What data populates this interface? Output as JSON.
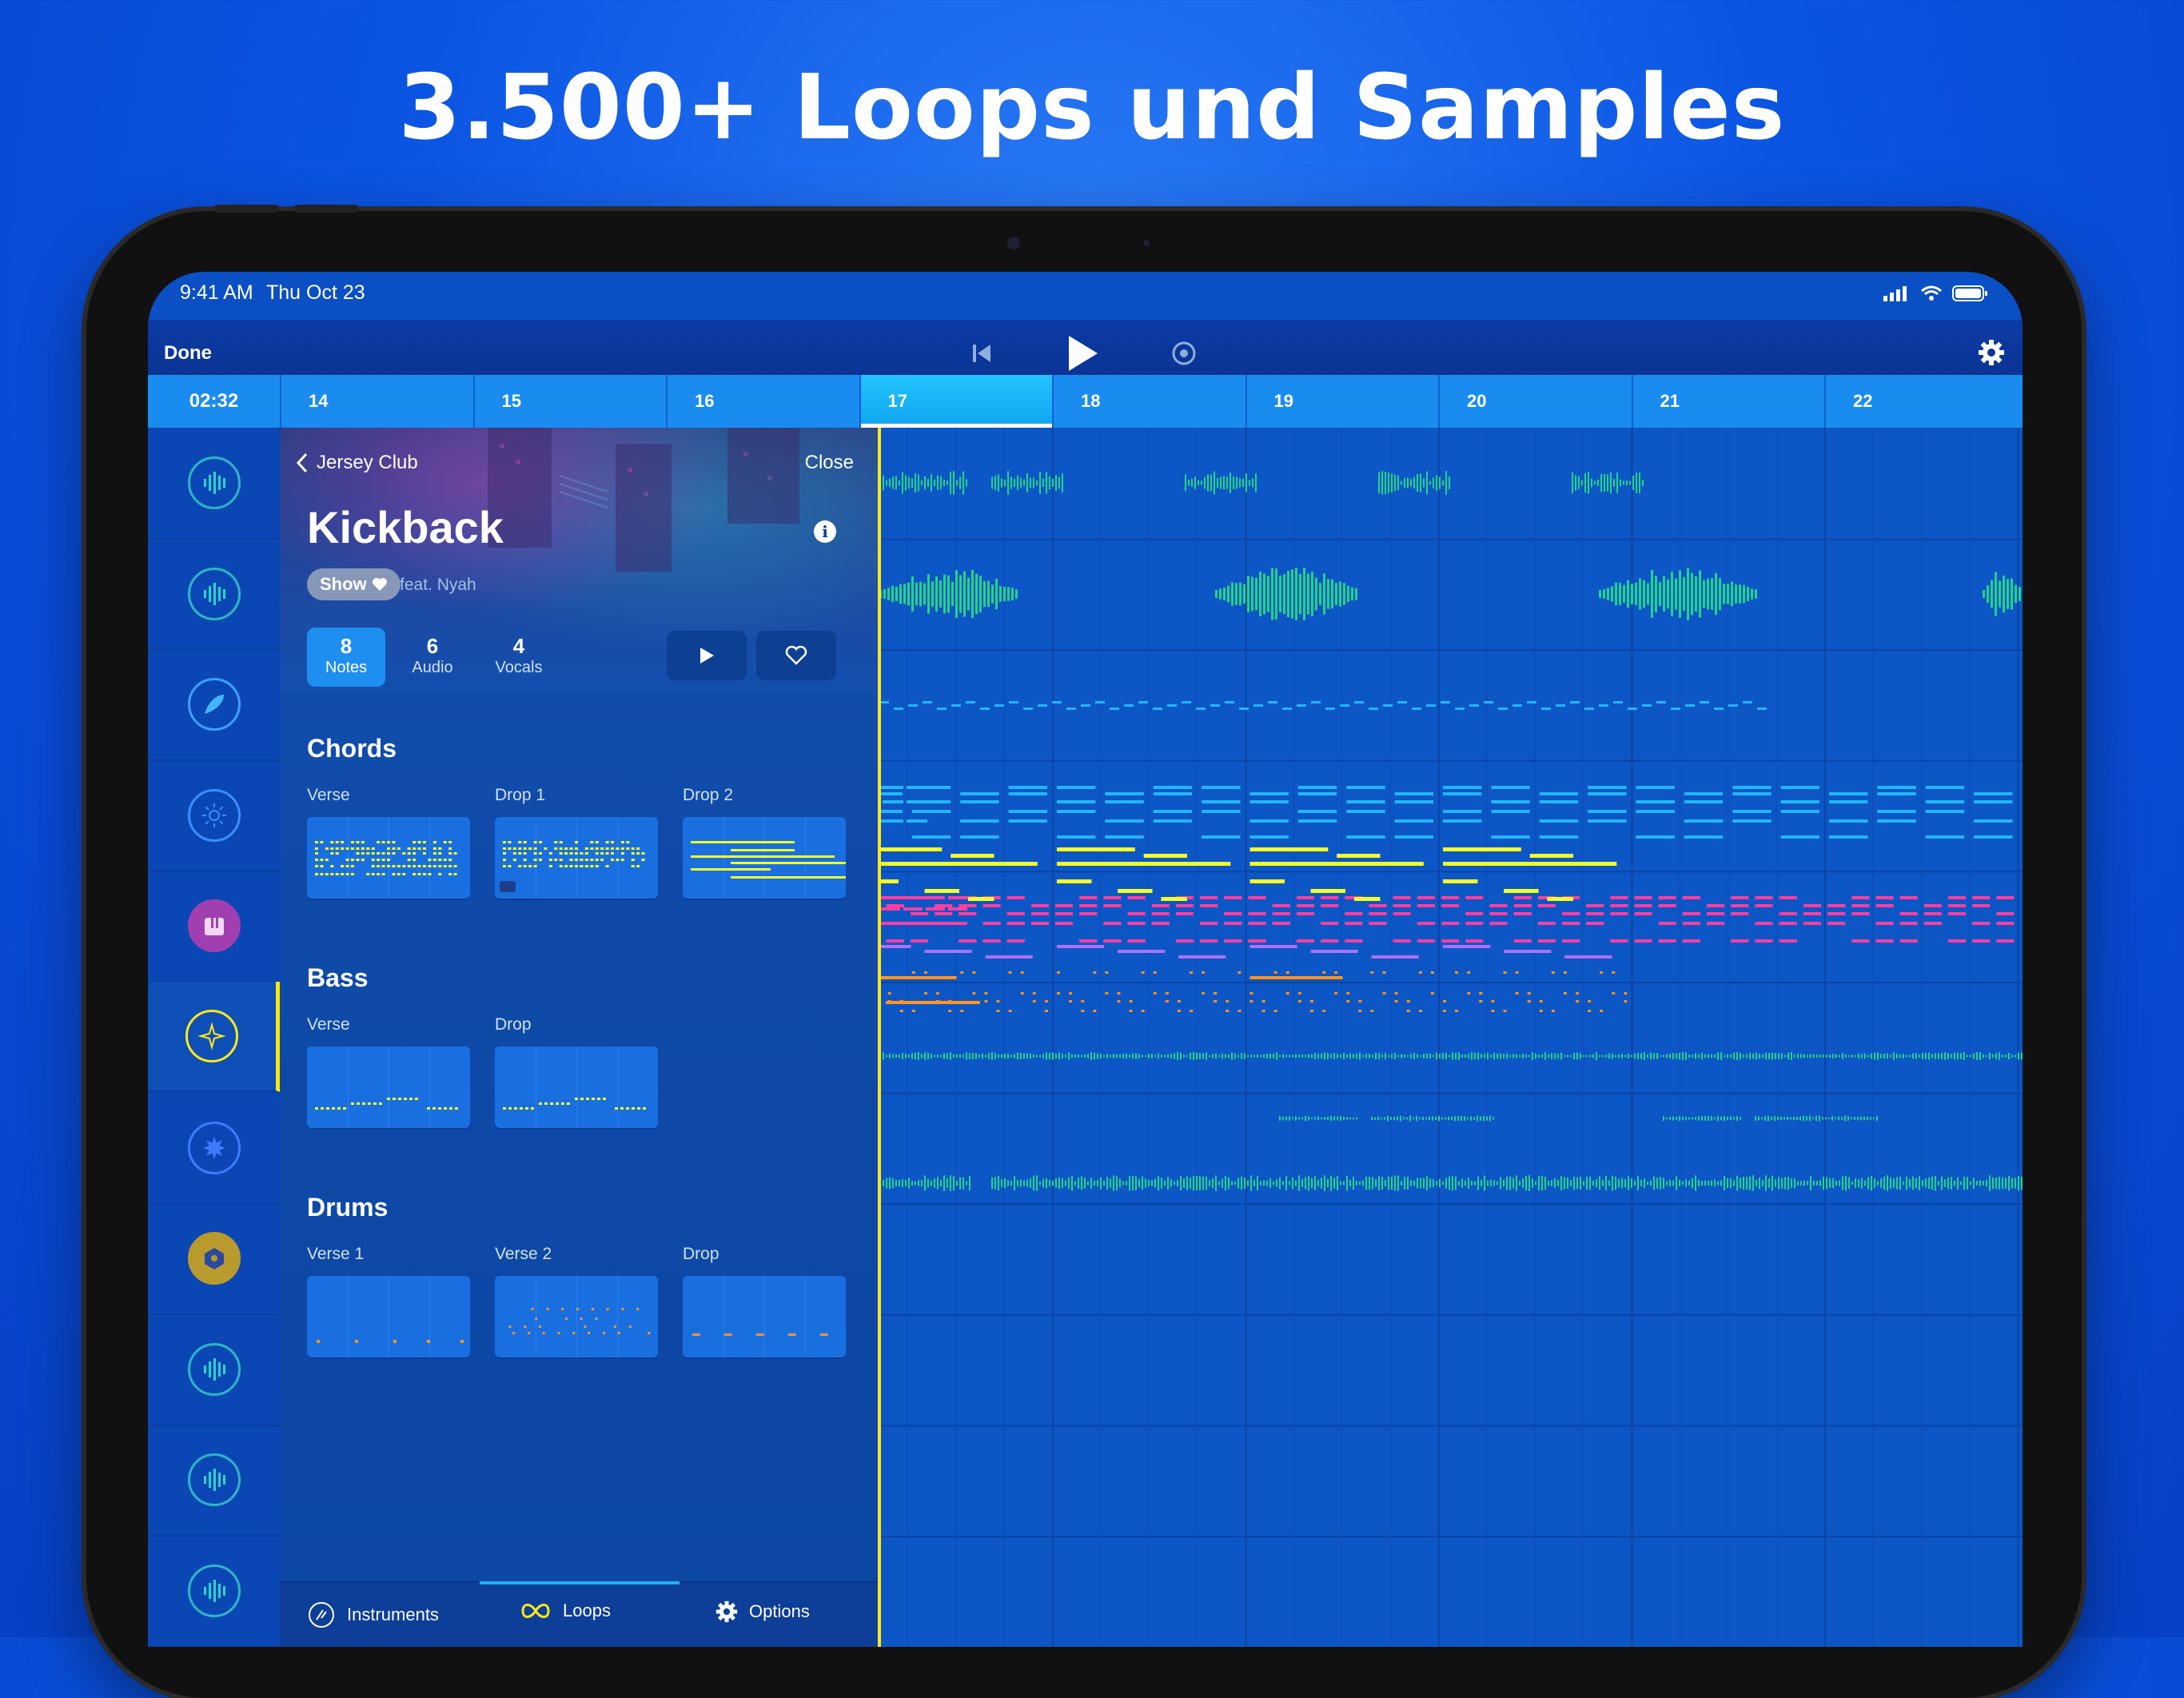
{
  "headline": "3.500+ Loops und Samples",
  "status": {
    "time": "9:41 AM",
    "date": "Thu Oct 23"
  },
  "topbar": {
    "done_label": "Done"
  },
  "ruler": {
    "time": "02:32",
    "bars": [
      "14",
      "15",
      "16",
      "17",
      "18",
      "19",
      "20",
      "21",
      "22"
    ],
    "active_bar": "17"
  },
  "panel": {
    "back_label": "Jersey Club",
    "close_label": "Close",
    "title": "Kickback",
    "show_label": "Show",
    "feat": "feat. Nyah",
    "stats": [
      {
        "n": "8",
        "label": "Notes"
      },
      {
        "n": "6",
        "label": "Audio"
      },
      {
        "n": "4",
        "label": "Vocals"
      }
    ],
    "sections": [
      {
        "title": "Chords",
        "items": [
          "Verse",
          "Drop 1",
          "Drop 2"
        ]
      },
      {
        "title": "Bass",
        "items": [
          "Verse",
          "Drop"
        ]
      },
      {
        "title": "Drums",
        "items": [
          "Verse 1",
          "Verse 2",
          "Drop"
        ]
      }
    ]
  },
  "tabs": [
    {
      "label": "Instruments",
      "icon": "instruments-icon"
    },
    {
      "label": "Loops",
      "icon": "loops-icon"
    },
    {
      "label": "Options",
      "icon": "gear-icon"
    }
  ],
  "colors": {
    "accent": "#1e8ef0",
    "playhead": "#ffe81a",
    "audio_green": "#22d38a",
    "cyan_notes": "#22b6ff",
    "pink_notes": "#ff3ea0",
    "yellow_notes": "#f2ff2a",
    "purple_notes": "#b070ff",
    "orange_notes": "#ff9520"
  },
  "track_icons": [
    "waveform-icon",
    "waveform-icon",
    "feather-icon",
    "sun-icon",
    "piano-icon",
    "sparkles-icon",
    "starburst-icon",
    "hexagon-icon",
    "waveform-icon",
    "waveform-icon",
    "waveform-icon"
  ]
}
